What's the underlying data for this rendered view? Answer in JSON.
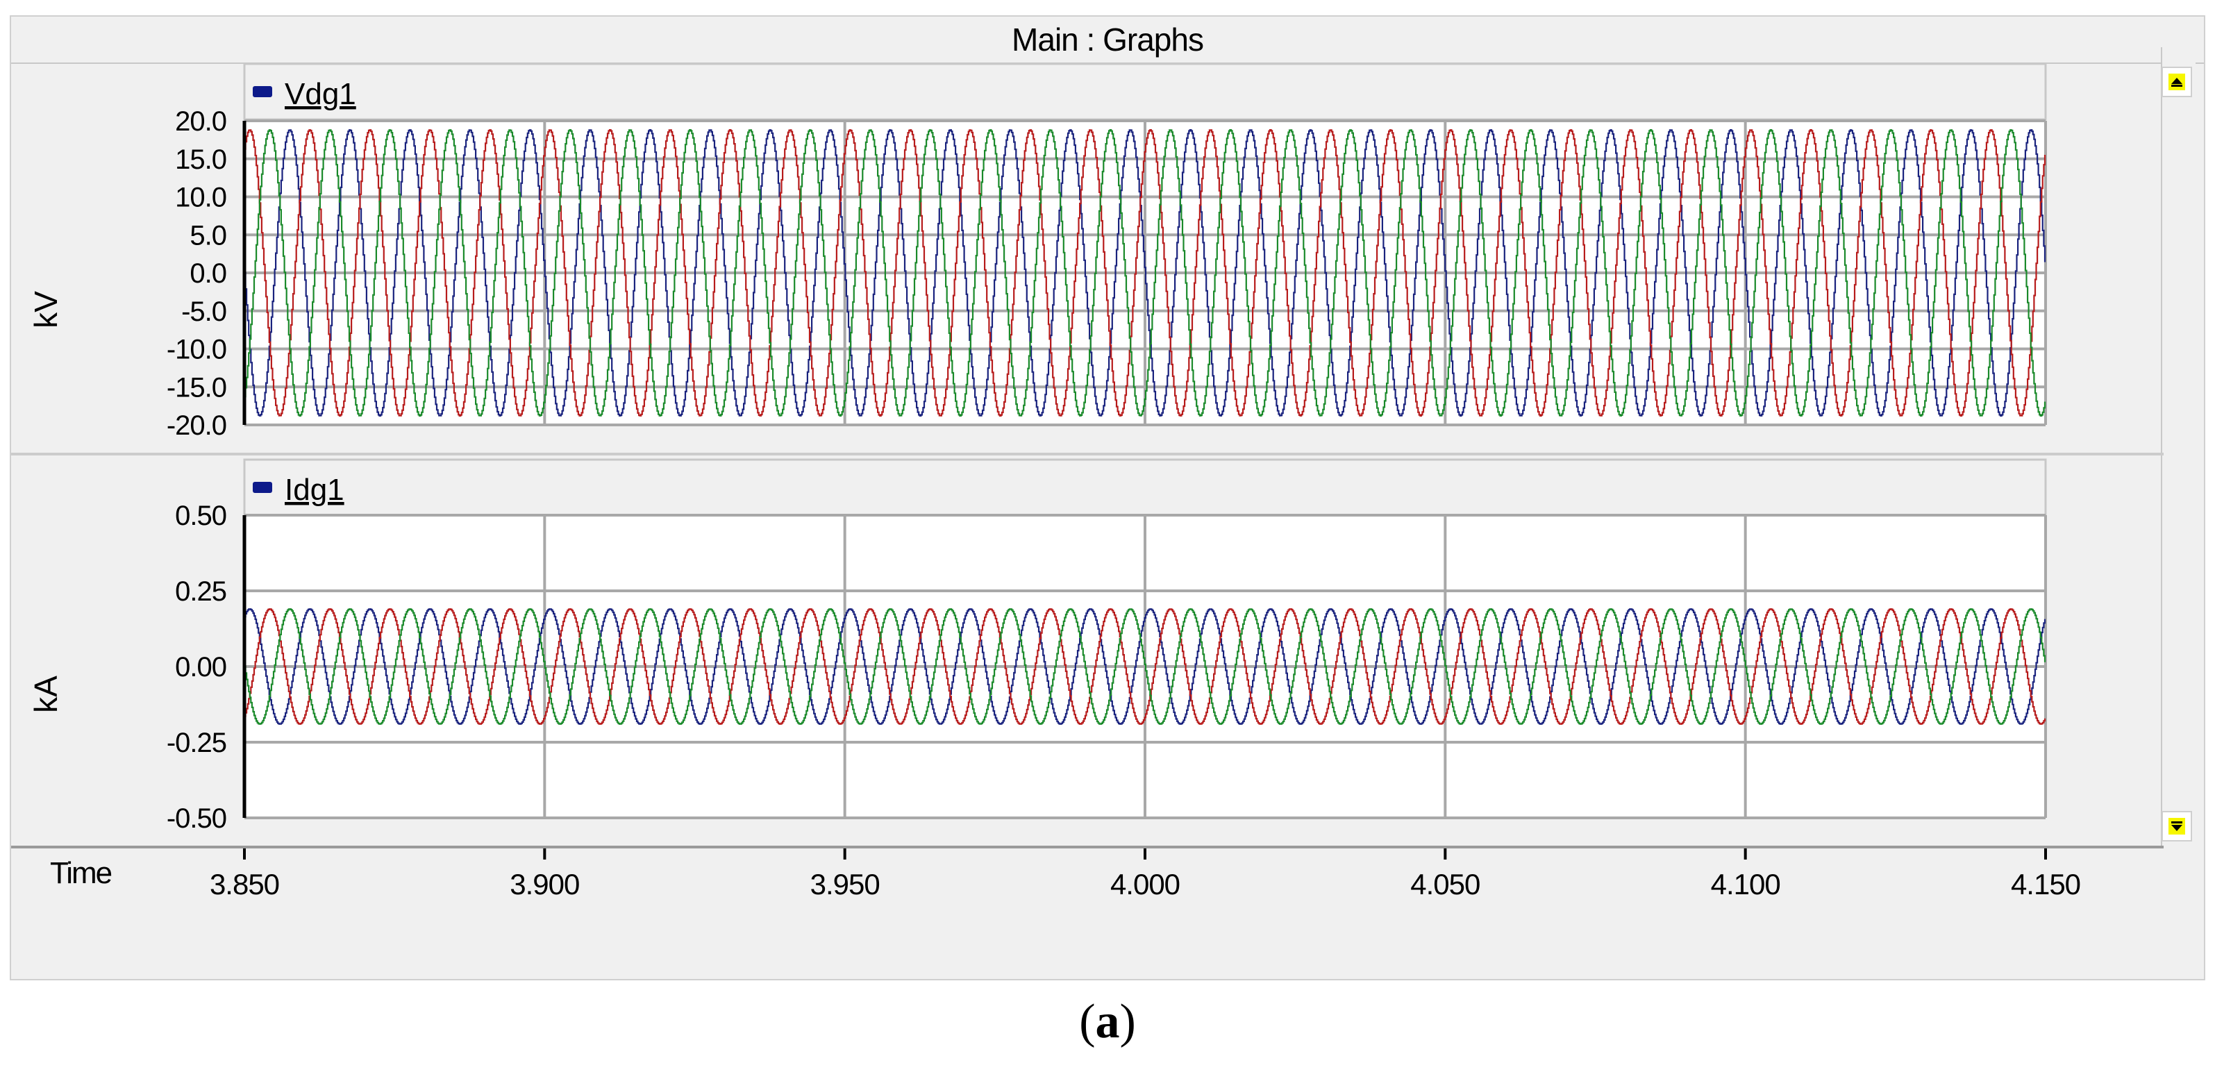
{
  "window": {
    "title": "Main : Graphs"
  },
  "time_axis": {
    "label": "Time"
  },
  "caption": {
    "open": "(",
    "letter": "a",
    "close": ")"
  },
  "colors": {
    "phase_a": "#1a237e",
    "phase_b": "#b71c1c",
    "phase_c": "#1b8a2b",
    "legend_swatch": "#0d1a8a",
    "grid": "#a8a8a8",
    "scroll_button": "#f6f600"
  },
  "icons": {
    "scroll_up": "scroll-up-arrow-icon",
    "scroll_down": "scroll-down-arrow-icon",
    "legend": "legend-swatch-icon"
  },
  "chart_data": [
    {
      "type": "line",
      "legend": [
        "Vdg1"
      ],
      "ylabel": "kV",
      "xlabel": "Time",
      "xlim": [
        3.85,
        4.15
      ],
      "ylim": [
        -20.0,
        20.0
      ],
      "x_ticks": [
        "3.850",
        "3.900",
        "3.950",
        "4.000",
        "4.050",
        "4.100",
        "4.150"
      ],
      "y_ticks": [
        "20.0",
        "15.0",
        "10.0",
        "5.0",
        "0.0",
        "-5.0",
        "-10.0",
        "-15.0",
        "-20.0"
      ],
      "grid": true,
      "waveform": "three-phase sinusoid",
      "frequency_hz": 100,
      "series": [
        {
          "phase": "a",
          "amplitude": 18.8,
          "phase_deg": 180,
          "color": "#1a237e"
        },
        {
          "phase": "b",
          "amplitude": 18.8,
          "phase_deg": 60,
          "color": "#b71c1c"
        },
        {
          "phase": "c",
          "amplitude": 18.8,
          "phase_deg": -60,
          "color": "#1b8a2b"
        }
      ]
    },
    {
      "type": "line",
      "legend": [
        "Idg1"
      ],
      "ylabel": "kA",
      "xlabel": "Time",
      "xlim": [
        3.85,
        4.15
      ],
      "ylim": [
        -0.5,
        0.5
      ],
      "x_ticks": [
        "3.850",
        "3.900",
        "3.950",
        "4.000",
        "4.050",
        "4.100",
        "4.150"
      ],
      "y_ticks": [
        "0.50",
        "0.25",
        "0.00",
        "-0.25",
        "-0.50"
      ],
      "grid": true,
      "waveform": "three-phase sinusoid",
      "frequency_hz": 100,
      "series": [
        {
          "phase": "a",
          "amplitude": 0.19,
          "phase_deg": 60,
          "color": "#1a237e"
        },
        {
          "phase": "b",
          "amplitude": 0.19,
          "phase_deg": -60,
          "color": "#b71c1c"
        },
        {
          "phase": "c",
          "amplitude": 0.19,
          "phase_deg": 180,
          "color": "#1b8a2b"
        }
      ]
    }
  ]
}
